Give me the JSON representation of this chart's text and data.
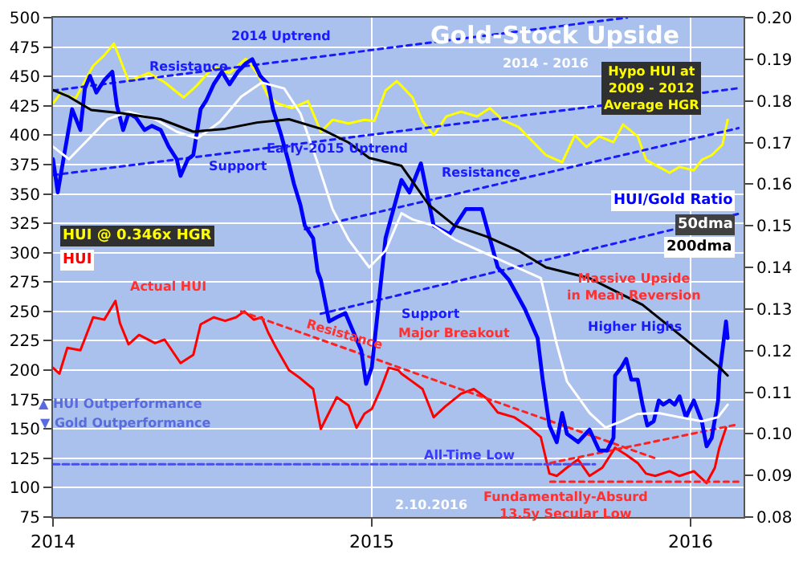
{
  "chart_data": {
    "type": "line",
    "title": "Gold-Stock Upside",
    "subtitle": "2014 - 2016",
    "xlim": [
      2014,
      2016.166
    ],
    "xticks": [
      2014,
      2015,
      2016
    ],
    "ylim": [
      75,
      500
    ],
    "yticks": [
      75,
      100,
      125,
      150,
      175,
      200,
      225,
      250,
      275,
      300,
      325,
      350,
      375,
      400,
      425,
      450,
      475,
      500
    ],
    "y2lim": [
      0.08,
      0.2
    ],
    "y2ticks": [
      0.08,
      0.09,
      {
        "value": 0.1,
        "label": "0.10"
      },
      0.11,
      0.12,
      0.13,
      0.14,
      0.15,
      0.16,
      0.17,
      0.18,
      0.19,
      {
        "value": 0.2,
        "label": "0.20"
      }
    ],
    "grid": true,
    "legend": false,
    "marker": "none",
    "series": [
      {
        "name": "HUI @ 0.346x HGR",
        "color": "#ffff00",
        "axis": "y",
        "x": [
          2014.0,
          2014.025,
          2014.07,
          2014.126,
          2014.161,
          2014.191,
          2014.21,
          2014.237,
          2014.3,
          2014.35,
          2014.41,
          2014.45,
          2014.504,
          2014.554,
          2014.605,
          2014.64,
          2014.675,
          2014.705,
          2014.75,
          2014.8,
          2014.84,
          2014.877,
          2014.927,
          2014.977,
          2015.008,
          2015.043,
          2015.078,
          2015.093,
          2015.128,
          2015.159,
          2015.194,
          2015.234,
          2015.28,
          2015.33,
          2015.37,
          2015.41,
          2015.46,
          2015.546,
          2015.597,
          2015.637,
          2015.673,
          2015.713,
          2015.758,
          2015.788,
          2015.834,
          2015.86,
          2015.9,
          2015.934,
          2015.965,
          2016.01,
          2016.035,
          2016.066,
          2016.1,
          2016.116
        ],
        "values": [
          427,
          436,
          431,
          459,
          468,
          478,
          465,
          446,
          453,
          445,
          432,
          442,
          458,
          453,
          465,
          453,
          433,
          427,
          423,
          429,
          403,
          413,
          410,
          413,
          412,
          438,
          446,
          442,
          432,
          412,
          400,
          416,
          420,
          416,
          423,
          413,
          407,
          383,
          377,
          400,
          390,
          399,
          394,
          409,
          399,
          379,
          373,
          368,
          373,
          370,
          379,
          383,
          392,
          413
        ]
      },
      {
        "name": "HUI",
        "color": "#ff0000",
        "axis": "y",
        "x": [
          2014.0,
          2014.02,
          2014.045,
          2014.086,
          2014.126,
          2014.161,
          2014.196,
          2014.21,
          2014.237,
          2014.27,
          2014.32,
          2014.35,
          2014.4,
          2014.44,
          2014.463,
          2014.504,
          2014.54,
          2014.574,
          2014.6,
          2014.63,
          2014.655,
          2014.675,
          2014.7,
          2014.74,
          2014.776,
          2014.816,
          2014.84,
          2014.866,
          2014.89,
          2014.927,
          2014.952,
          2014.977,
          2015.0,
          2015.028,
          2015.053,
          2015.083,
          2015.093,
          2015.159,
          2015.194,
          2015.23,
          2015.28,
          2015.32,
          2015.36,
          2015.395,
          2015.446,
          2015.496,
          2015.53,
          2015.557,
          2015.58,
          2015.612,
          2015.647,
          2015.683,
          2015.723,
          2015.763,
          2015.798,
          2015.834,
          2015.86,
          2015.889,
          2015.934,
          2015.965,
          2016.01,
          2016.05,
          2016.076,
          2016.09,
          2016.111
        ],
        "values": [
          202,
          197,
          219,
          217,
          245,
          243,
          259,
          240,
          222,
          230,
          223,
          226,
          206,
          213,
          239,
          245,
          242,
          245,
          250,
          243,
          245,
          232,
          219,
          200,
          193,
          184,
          150,
          164,
          177,
          170,
          151,
          163,
          167,
          184,
          202,
          200,
          197,
          184,
          160,
          169,
          180,
          184,
          176,
          164,
          160,
          151,
          143,
          112,
          110,
          117,
          124,
          110,
          117,
          134,
          128,
          121,
          112,
          110,
          114,
          110,
          114,
          104,
          117,
          134,
          151
        ]
      },
      {
        "name": "HUI/Gold Ratio",
        "color": "#0000ff",
        "axis": "y2",
        "x": [
          2014.0,
          2014.015,
          2014.035,
          2014.06,
          2014.086,
          2014.1,
          2014.116,
          2014.136,
          2014.161,
          2014.186,
          2014.2,
          2014.22,
          2014.237,
          2014.26,
          2014.287,
          2014.31,
          2014.338,
          2014.363,
          2014.388,
          2014.4,
          2014.423,
          2014.44,
          2014.463,
          2014.48,
          2014.504,
          2014.53,
          2014.554,
          2014.58,
          2014.605,
          2014.625,
          2014.65,
          2014.675,
          2014.69,
          2014.715,
          2014.74,
          2014.756,
          2014.776,
          2014.79,
          2014.816,
          2014.83,
          2014.84,
          2014.866,
          2014.89,
          2014.917,
          2014.967,
          2014.982,
          2015.0,
          2015.043,
          2015.093,
          2015.118,
          2015.154,
          2015.194,
          2015.244,
          2015.295,
          2015.345,
          2015.395,
          2015.43,
          2015.48,
          2015.52,
          2015.536,
          2015.557,
          2015.58,
          2015.597,
          2015.612,
          2015.647,
          2015.683,
          2015.713,
          2015.738,
          2015.758,
          2015.763,
          2015.783,
          2015.798,
          2015.814,
          2015.834,
          2015.849,
          2015.864,
          2015.884,
          2015.9,
          2015.914,
          2015.934,
          2015.95,
          2015.965,
          2015.985,
          2016.01,
          2016.035,
          2016.05,
          2016.066,
          2016.086,
          2016.09,
          2016.111,
          2016.116
        ],
        "values": [
          0.166,
          0.158,
          0.167,
          0.178,
          0.173,
          0.183,
          0.186,
          0.182,
          0.185,
          0.187,
          0.179,
          0.173,
          0.177,
          0.176,
          0.173,
          0.174,
          0.173,
          0.169,
          0.166,
          0.162,
          0.166,
          0.167,
          0.178,
          0.18,
          0.184,
          0.187,
          0.184,
          0.187,
          0.189,
          0.19,
          0.186,
          0.184,
          0.178,
          0.172,
          0.165,
          0.16,
          0.155,
          0.15,
          0.147,
          0.139,
          0.137,
          0.127,
          0.128,
          0.129,
          0.12,
          0.112,
          0.116,
          0.147,
          0.161,
          0.158,
          0.165,
          0.15,
          0.148,
          0.154,
          0.154,
          0.14,
          0.137,
          0.13,
          0.123,
          0.113,
          0.102,
          0.098,
          0.105,
          0.1,
          0.098,
          0.101,
          0.096,
          0.096,
          0.099,
          0.114,
          0.116,
          0.118,
          0.113,
          0.113,
          0.107,
          0.102,
          0.103,
          0.108,
          0.107,
          0.108,
          0.107,
          0.109,
          0.104,
          0.108,
          0.103,
          0.097,
          0.099,
          0.108,
          0.114,
          0.127,
          0.123
        ]
      },
      {
        "name": "50dma",
        "color": "#ffffff",
        "axis": "y2",
        "x": [
          2014.0,
          2014.05,
          2014.12,
          2014.171,
          2014.237,
          2014.32,
          2014.388,
          2014.453,
          2014.524,
          2014.59,
          2014.655,
          2014.725,
          2014.776,
          2014.826,
          2014.877,
          2014.927,
          2014.992,
          2015.043,
          2015.093,
          2015.128,
          2015.194,
          2015.26,
          2015.53,
          2015.58,
          2015.612,
          2015.683,
          2015.733,
          2015.783,
          2015.834,
          2015.9,
          2015.965,
          2016.035,
          2016.086,
          2016.116
        ],
        "values": [
          0.169,
          0.166,
          0.1715,
          0.1756,
          0.1774,
          0.1756,
          0.1726,
          0.171,
          0.175,
          0.181,
          0.1844,
          0.183,
          0.177,
          0.166,
          0.154,
          0.1467,
          0.14,
          0.144,
          0.153,
          0.1515,
          0.15,
          0.1467,
          0.1374,
          0.1215,
          0.1126,
          0.105,
          0.1015,
          0.103,
          0.1048,
          0.105,
          0.104,
          0.103,
          0.104,
          0.107
        ]
      },
      {
        "name": "200dma",
        "color": "#000000",
        "axis": "y2",
        "x": [
          2014.0,
          2014.05,
          2014.12,
          2014.22,
          2014.338,
          2014.44,
          2014.54,
          2014.64,
          2014.74,
          2014.84,
          2014.927,
          2014.992,
          2015.093,
          2015.179,
          2015.26,
          2015.36,
          2015.46,
          2015.546,
          2015.683,
          2015.849,
          2015.985,
          2016.086,
          2016.116
        ],
        "values": [
          0.1826,
          0.181,
          0.1778,
          0.177,
          0.1756,
          0.1726,
          0.1733,
          0.1748,
          0.1756,
          0.1733,
          0.17,
          0.1663,
          0.1644,
          0.155,
          0.15,
          0.1474,
          0.144,
          0.14,
          0.1374,
          0.131,
          0.1226,
          0.1163,
          0.114
        ]
      },
      {
        "color": "#1a1aff",
        "axis": "y",
        "line_style": "dotted",
        "x": [
          2014.0,
          2015.8
        ],
        "values": [
          438,
          500
        ]
      },
      {
        "color": "#1a1aff",
        "axis": "y",
        "line_style": "dotted",
        "x": [
          2014.0,
          2016.15
        ],
        "values": [
          366,
          440
        ]
      },
      {
        "color": "#1a1aff",
        "axis": "y",
        "line_style": "dotted",
        "x": [
          2014.79,
          2016.15
        ],
        "values": [
          320,
          406
        ]
      },
      {
        "color": "#1a1aff",
        "axis": "y",
        "line_style": "dotted",
        "x": [
          2014.84,
          2016.15
        ],
        "values": [
          248,
          333
        ]
      },
      {
        "color": "#ff2020",
        "axis": "y",
        "line_style": "dotted",
        "x": [
          2014.59,
          2015.9
        ],
        "values": [
          250,
          124
        ]
      },
      {
        "color": "#ff2020",
        "axis": "y",
        "line_style": "dotted",
        "x": [
          2015.56,
          2016.15
        ],
        "values": [
          121,
          154
        ]
      },
      {
        "color": "#ff2020",
        "axis": "y",
        "line_style": "dotted",
        "x": [
          2015.56,
          2016.15
        ],
        "values": [
          105,
          105
        ]
      },
      {
        "color": "#4a4aff",
        "axis": "y",
        "line_style": "dashed",
        "x": [
          2014.0,
          2015.7
        ],
        "values": [
          120,
          120
        ]
      }
    ],
    "annotations": [
      "2014 Uptrend",
      "Resistance",
      "Support",
      "Early-2015 Uptrend",
      "Resistance",
      "Support",
      "Hypo HUI at\n2009 - 2012\nAverage HGR",
      "Actual HUI",
      "Resistance",
      "Major Breakout",
      "Massive Upside\nin Mean Reversion",
      "Higher Highs",
      "All-Time Low",
      "▲ HUI Outperformance",
      "▼ Gold Outperformance",
      "2.10.2016",
      "Fundamentally-Absurd\n13.5y Secular Low"
    ]
  }
}
